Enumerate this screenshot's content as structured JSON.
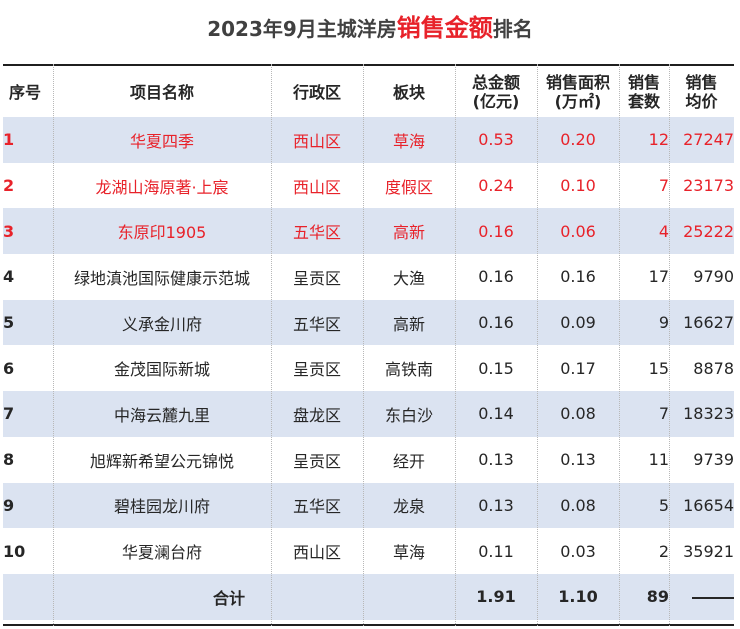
{
  "title": {
    "prefix": "2023年9月主城洋房",
    "highlight": "销售金额",
    "suffix": "排名"
  },
  "headers": {
    "idx": "序号",
    "name": "项目名称",
    "district": "行政区",
    "block": "板块",
    "amount_l1": "总金额",
    "amount_l2": "(亿元)",
    "area_l1": "销售面积",
    "area_l2": "(万㎡)",
    "count_l1": "销售",
    "count_l2": "套数",
    "avg_l1": "销售",
    "avg_l2": "均价"
  },
  "rows": [
    {
      "idx": "1",
      "name": "华夏四季",
      "district": "西山区",
      "block": "草海",
      "amount": "0.53",
      "area": "0.20",
      "count": "12",
      "avg": "27247",
      "shaded": true,
      "red": true
    },
    {
      "idx": "2",
      "name": "龙湖山海原著·上宸",
      "district": "西山区",
      "block": "度假区",
      "amount": "0.24",
      "area": "0.10",
      "count": "7",
      "avg": "23173",
      "shaded": false,
      "red": true
    },
    {
      "idx": "3",
      "name": "东原印1905",
      "district": "五华区",
      "block": "高新",
      "amount": "0.16",
      "area": "0.06",
      "count": "4",
      "avg": "25222",
      "shaded": true,
      "red": true
    },
    {
      "idx": "4",
      "name": "绿地滇池国际健康示范城",
      "district": "呈贡区",
      "block": "大渔",
      "amount": "0.16",
      "area": "0.16",
      "count": "17",
      "avg": "9790",
      "shaded": false,
      "red": false
    },
    {
      "idx": "5",
      "name": "义承金川府",
      "district": "五华区",
      "block": "高新",
      "amount": "0.16",
      "area": "0.09",
      "count": "9",
      "avg": "16627",
      "shaded": true,
      "red": false
    },
    {
      "idx": "6",
      "name": "金茂国际新城",
      "district": "呈贡区",
      "block": "高铁南",
      "amount": "0.15",
      "area": "0.17",
      "count": "15",
      "avg": "8878",
      "shaded": false,
      "red": false
    },
    {
      "idx": "7",
      "name": "中海云麓九里",
      "district": "盘龙区",
      "block": "东白沙",
      "amount": "0.14",
      "area": "0.08",
      "count": "7",
      "avg": "18323",
      "shaded": true,
      "red": false
    },
    {
      "idx": "8",
      "name": "旭辉新希望公元锦悦",
      "district": "呈贡区",
      "block": "经开",
      "amount": "0.13",
      "area": "0.13",
      "count": "11",
      "avg": "9739",
      "shaded": false,
      "red": false
    },
    {
      "idx": "9",
      "name": "碧桂园龙川府",
      "district": "五华区",
      "block": "龙泉",
      "amount": "0.13",
      "area": "0.08",
      "count": "5",
      "avg": "16654",
      "shaded": true,
      "red": false
    },
    {
      "idx": "10",
      "name": "华夏澜台府",
      "district": "西山区",
      "block": "草海",
      "amount": "0.11",
      "area": "0.03",
      "count": "2",
      "avg": "35921",
      "shaded": false,
      "red": false
    }
  ],
  "total": {
    "label": "合计",
    "amount": "1.91",
    "area": "1.10",
    "count": "89"
  },
  "colors": {
    "accent_red": "#e8222a",
    "row_shade": "#dbe3f1",
    "text": "#262626"
  }
}
